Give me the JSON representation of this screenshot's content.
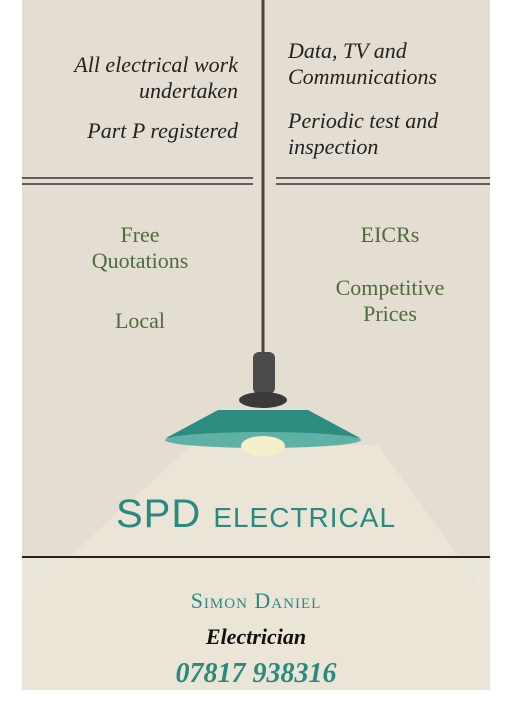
{
  "services": {
    "left": [
      "All electrical work undertaken",
      "Part P registered"
    ],
    "right": [
      "Data, TV and Communications",
      "Periodic test and inspection"
    ]
  },
  "benefits": {
    "left": [
      "Free Quotations",
      "Local"
    ],
    "right": [
      "EICRs",
      "Competitive Prices"
    ]
  },
  "company": "SPD electrical",
  "contact": {
    "name": "Simon Daniel",
    "role": "Electrician",
    "phone": "07817 938316"
  }
}
